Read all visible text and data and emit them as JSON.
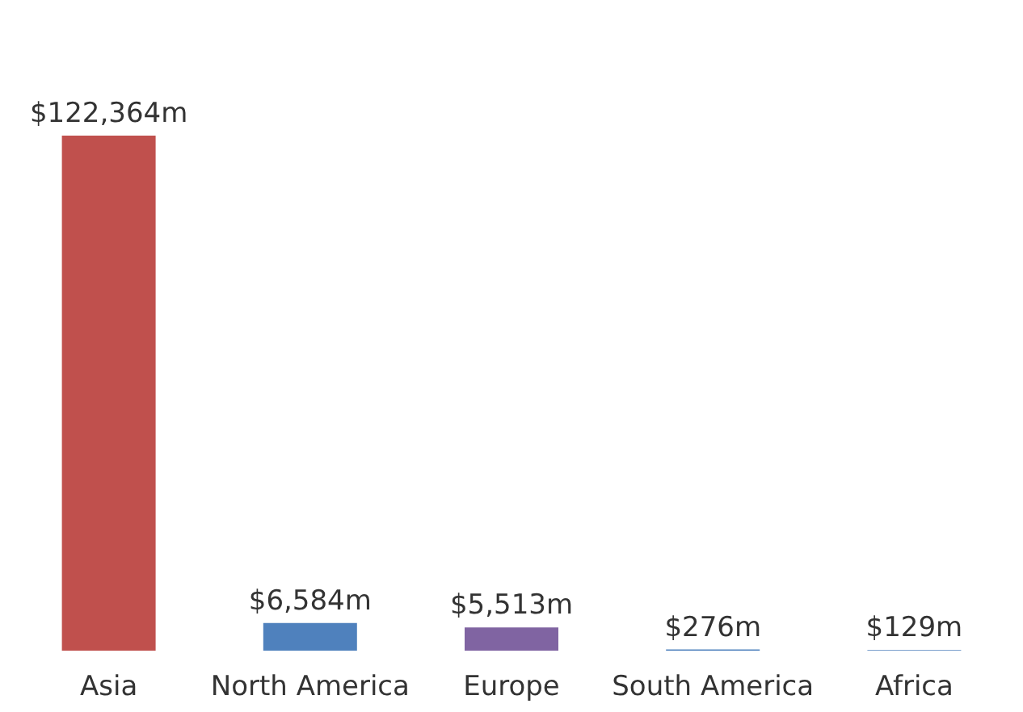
{
  "chart_data": {
    "type": "bar",
    "categories": [
      "Asia",
      "North America",
      "Europe",
      "South America",
      "Africa"
    ],
    "values": [
      122364,
      6584,
      5513,
      276,
      129
    ],
    "colors": [
      "#c0504d",
      "#4f81bd",
      "#8064a2",
      "#4f81bd",
      "#4f81bd"
    ],
    "value_labels": [
      "$122,364m",
      "$6,584m",
      "$5,513m",
      "$276m",
      "$129m"
    ]
  }
}
